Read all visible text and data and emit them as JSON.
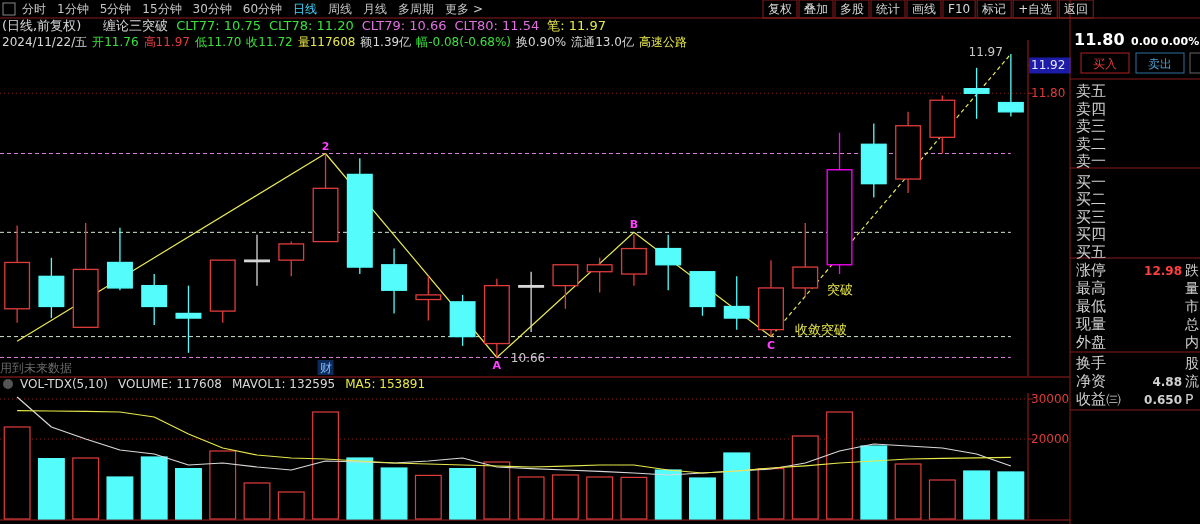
{
  "chart_data": [
    {
      "type": "candlestick",
      "title": "(日线,前复权)",
      "categories": [
        null,
        null,
        null,
        null,
        null,
        null,
        null,
        null,
        null,
        null,
        null,
        null,
        null,
        null,
        null,
        null,
        null,
        null,
        null,
        null,
        null,
        null,
        null,
        null,
        null,
        null,
        null,
        null,
        null,
        null
      ],
      "ohlc": [
        [
          10.87,
          11.23,
          10.81,
          11.07
        ],
        [
          11.01,
          11.09,
          10.83,
          10.88
        ],
        [
          10.79,
          11.24,
          10.79,
          11.04
        ],
        [
          11.07,
          11.22,
          10.95,
          10.96
        ],
        [
          10.97,
          11.02,
          10.8,
          10.88
        ],
        [
          10.85,
          10.97,
          10.68,
          10.83
        ],
        [
          10.86,
          11.08,
          10.81,
          11.08
        ],
        [
          11.08,
          11.19,
          10.97,
          11.08
        ],
        [
          11.08,
          11.16,
          11.01,
          11.15
        ],
        [
          11.16,
          11.54,
          11.16,
          11.39
        ],
        [
          11.45,
          11.52,
          11.02,
          11.05
        ],
        [
          11.06,
          11.13,
          10.85,
          10.95
        ],
        [
          10.91,
          11.01,
          10.82,
          10.93
        ],
        [
          10.9,
          10.93,
          10.71,
          10.75
        ],
        [
          10.72,
          11.0,
          10.66,
          10.97
        ],
        [
          10.97,
          11.03,
          10.77,
          10.97
        ],
        [
          10.97,
          11.06,
          10.87,
          11.06
        ],
        [
          11.03,
          11.09,
          10.94,
          11.06
        ],
        [
          11.02,
          11.19,
          10.97,
          11.13
        ],
        [
          11.13,
          11.19,
          10.95,
          11.06
        ],
        [
          11.03,
          11.03,
          10.84,
          10.88
        ],
        [
          10.88,
          11.01,
          10.78,
          10.83
        ],
        [
          10.78,
          11.08,
          10.75,
          10.96
        ],
        [
          10.96,
          11.24,
          10.92,
          11.05
        ],
        [
          11.06,
          11.63,
          11.02,
          11.47
        ],
        [
          11.58,
          11.67,
          11.35,
          11.41
        ],
        [
          11.43,
          11.72,
          11.37,
          11.66
        ],
        [
          11.61,
          11.79,
          11.54,
          11.77
        ],
        [
          11.82,
          11.91,
          11.69,
          11.8
        ],
        [
          11.76,
          11.97,
          11.7,
          11.72
        ]
      ],
      "colors": [
        "#e03c3c",
        "#54fcfc",
        "#e03c3c",
        "#54fcfc",
        "#54fcfc",
        "#54fcfc",
        "#e03c3c",
        "#d8d8d8",
        "#e03c3c",
        "#e03c3c",
        "#54fcfc",
        "#54fcfc",
        "#e03c3c",
        "#54fcfc",
        "#e03c3c",
        "#d8d8d8",
        "#e03c3c",
        "#e03c3c",
        "#e03c3c",
        "#54fcfc",
        "#54fcfc",
        "#54fcfc",
        "#e03c3c",
        "#e03c3c",
        "#ff00ff",
        "#54fcfc",
        "#e03c3c",
        "#e03c3c",
        "#54fcfc",
        "#54fcfc"
      ],
      "ylim": [
        10.58,
        12.03
      ],
      "yticks": [
        {
          "value": 11.92,
          "label": "11.92"
        },
        {
          "value": 11.8,
          "label": "11.80"
        }
      ],
      "tick_labels": "y",
      "series": [
        {
          "type": "line",
          "color": "#e8e85a",
          "values": [
            10.73,
            null,
            null,
            null,
            null,
            null,
            null,
            null,
            null,
            11.54,
            null,
            null,
            null,
            null,
            10.66,
            null,
            null,
            null,
            11.2,
            null,
            null,
            null,
            10.75,
            null,
            null,
            null,
            null,
            null,
            null,
            null
          ]
        },
        {
          "type": "line",
          "color": "#e8e85a",
          "line_style": "dashed",
          "values": [
            null,
            null,
            null,
            null,
            null,
            null,
            null,
            null,
            null,
            null,
            null,
            null,
            null,
            null,
            null,
            null,
            null,
            null,
            null,
            null,
            null,
            null,
            10.75,
            null,
            null,
            null,
            null,
            null,
            null,
            11.97
          ]
        }
      ],
      "ref_lines": [
        {
          "axis": "y",
          "value": 11.8,
          "color": "#8a1c1c",
          "line_style": "dotted"
        },
        {
          "axis": "y",
          "value": 11.54,
          "color": "#e080e0",
          "line_style": "dashed"
        },
        {
          "axis": "y",
          "value": 11.2,
          "color": "#d0e8d0",
          "line_style": "dashed"
        },
        {
          "axis": "y",
          "value": 10.75,
          "color": "#d0e8d0",
          "line_style": "dashed"
        },
        {
          "axis": "y",
          "value": 10.66,
          "color": "#e080e0",
          "line_style": "dashed"
        }
      ],
      "annotations": [
        "缠论三突破",
        "CLT77: 10.75",
        "CLT78: 11.20",
        "CLT79: 10.66",
        "CLT80: 11.54",
        "笔: 11.97",
        "2024/11/22/五",
        "开11.76",
        "高11.97",
        "低11.70",
        "收11.72",
        "量117608",
        "额1.39亿",
        "幅-0.08(-0.68%)",
        "换0.90%",
        "流通13.0亿",
        "高速公路",
        "用到未来数据",
        "财",
        "11.97",
        "突破",
        "收敛突破",
        {
          "text": "2",
          "y": 11.54
        },
        {
          "text": "A",
          "y": 10.66
        },
        {
          "text": "B",
          "y": 11.2
        },
        {
          "text": "C",
          "y": 10.75
        },
        {
          "text": "10.66",
          "y": 10.66
        }
      ]
    },
    {
      "type": "bar",
      "title": "VOL-TDX(5,10)",
      "categories": [
        null,
        null,
        null,
        null,
        null,
        null,
        null,
        null,
        null,
        null,
        null,
        null,
        null,
        null,
        null,
        null,
        null,
        null,
        null,
        null,
        null,
        null,
        null,
        null,
        null,
        null,
        null,
        null,
        null,
        null
      ],
      "values": [
        23000,
        15100,
        15250,
        10500,
        15500,
        12600,
        17000,
        9000,
        6750,
        26750,
        15250,
        12750,
        10900,
        12600,
        14250,
        10500,
        11000,
        10500,
        10400,
        12250,
        10250,
        16500,
        12600,
        20750,
        26750,
        18250,
        13750,
        9750,
        12000,
        11760
      ],
      "colors": [
        "#e03c3c",
        "#54fcfc",
        "#e03c3c",
        "#54fcfc",
        "#54fcfc",
        "#54fcfc",
        "#e03c3c",
        "#e03c3c",
        "#e03c3c",
        "#e03c3c",
        "#54fcfc",
        "#54fcfc",
        "#e03c3c",
        "#54fcfc",
        "#e03c3c",
        "#e03c3c",
        "#e03c3c",
        "#e03c3c",
        "#e03c3c",
        "#54fcfc",
        "#54fcfc",
        "#54fcfc",
        "#e03c3c",
        "#e03c3c",
        "#e03c3c",
        "#54fcfc",
        "#e03c3c",
        "#e03c3c",
        "#54fcfc",
        "#54fcfc"
      ],
      "ylim": [
        0,
        31500
      ],
      "yticks": [
        20000,
        30000
      ],
      "tick_labels": "y",
      "grid": "y",
      "annotations": [
        "VOLUME: 117608"
      ],
      "series": [
        {
          "type": "line",
          "name": "MAVOL1: 132595",
          "color": "#d8d8d8",
          "values": [
            30500,
            23000,
            20000,
            17250,
            16250,
            13500,
            14000,
            13000,
            12250,
            14500,
            14250,
            14000,
            14500,
            15250,
            13000,
            12600,
            12250,
            11900,
            11500,
            11000,
            11500,
            12000,
            12500,
            14000,
            17000,
            18750,
            18250,
            17750,
            16250,
            13260
          ]
        },
        {
          "type": "line",
          "name": "MA5: 153891",
          "color": "#e8e84a",
          "values": [
            27100,
            27000,
            26900,
            26750,
            25500,
            21250,
            17750,
            16000,
            15250,
            15000,
            14500,
            14000,
            13750,
            13500,
            13250,
            13000,
            13200,
            13500,
            13500,
            12250,
            11500,
            12000,
            12750,
            13300,
            14000,
            14500,
            15000,
            15150,
            15300,
            15390
          ]
        }
      ]
    },
    {
      "type": "other",
      "annotations": [
        "分时",
        "1分钟",
        "5分钟",
        "15分钟",
        "30分钟",
        "60分钟",
        "日线",
        "周线",
        "月线",
        "多周期",
        "更多 >",
        "复权",
        "叠加",
        "多股",
        "统计",
        "画线",
        "F10",
        "标记",
        "+自选",
        "返回",
        "11.80",
        "0.00",
        "0.00%",
        "买入",
        "卖出",
        "卖五",
        "卖四",
        "卖三",
        "卖二",
        "卖一",
        "买一",
        "买二",
        "买三",
        "买四",
        "买五",
        "涨停",
        "12.98",
        "跌",
        "最高",
        "量",
        "最低",
        "市",
        "现量",
        "总",
        "外盘",
        "内",
        "换手",
        "股",
        "净资",
        "4.88",
        "流",
        "收益㈢",
        "0.650",
        "P"
      ]
    }
  ]
}
